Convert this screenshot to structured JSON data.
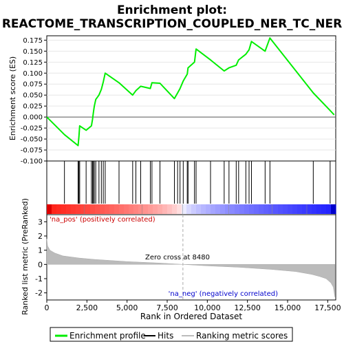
{
  "chart_data": {
    "type": "line",
    "title": "Enrichment plot:",
    "subtitle": "REACTOME_TRANSCRIPTION_COUPLED_NER_TC_NER",
    "top_panel": {
      "ylabel": "Enrichment score (ES)",
      "ylim": [
        -0.1,
        0.185
      ],
      "yticks": [
        "-0.100",
        "-0.075",
        "-0.050",
        "-0.025",
        "0.000",
        "0.025",
        "0.050",
        "0.075",
        "0.100",
        "0.125",
        "0.150",
        "0.175"
      ],
      "series": [
        {
          "name": "Enrichment profile",
          "color": "#00ee00",
          "x": [
            0,
            1100,
            1950,
            2000,
            2050,
            2450,
            2780,
            2850,
            2900,
            2960,
            3050,
            3250,
            3400,
            3520,
            3640,
            4500,
            5350,
            5550,
            5850,
            6450,
            6550,
            7050,
            7950,
            8150,
            8300,
            8500,
            8750,
            8800,
            9200,
            9300,
            10200,
            11050,
            11350,
            11800,
            11950,
            12400,
            12600,
            12750,
            13600,
            13900,
            16600,
            17650,
            17900
          ],
          "y": [
            0.0,
            -0.04,
            -0.065,
            -0.045,
            -0.02,
            -0.03,
            -0.02,
            -0.005,
            0.01,
            0.025,
            0.04,
            0.05,
            0.063,
            0.08,
            0.1,
            0.078,
            0.05,
            0.06,
            0.07,
            0.065,
            0.078,
            0.077,
            0.042,
            0.055,
            0.065,
            0.082,
            0.098,
            0.112,
            0.125,
            0.155,
            0.13,
            0.105,
            0.112,
            0.118,
            0.13,
            0.143,
            0.153,
            0.172,
            0.15,
            0.18,
            0.055,
            0.015,
            0.005
          ]
        }
      ]
    },
    "hits_panel": {
      "legend_label": "Hits",
      "hit_positions": [
        1100,
        1950,
        2000,
        2050,
        2450,
        2780,
        2850,
        2900,
        2960,
        3050,
        3250,
        3400,
        3520,
        3640,
        4500,
        5350,
        5550,
        5850,
        6450,
        6550,
        7050,
        7950,
        8150,
        8300,
        8500,
        8750,
        8800,
        9200,
        9300,
        10200,
        11050,
        11350,
        11800,
        11950,
        12400,
        12600,
        12750,
        13600,
        13900,
        16600,
        17650
      ]
    },
    "bottom_panel": {
      "ylabel": "Ranked list metric (PreRanked)",
      "xlabel": "Rank in Ordered Dataset",
      "ylim": [
        -2.5,
        3.5
      ],
      "yticks": [
        "-2",
        "-1",
        "0",
        "1",
        "2",
        "3"
      ],
      "x_range": [
        0,
        18000
      ],
      "xticks": [
        "0",
        "2,500",
        "5,000",
        "7,500",
        "10,000",
        "12,500",
        "15,000",
        "17,500"
      ],
      "metric_profile": {
        "name": "Ranking metric scores",
        "x": [
          0,
          50,
          200,
          500,
          1000,
          2000,
          3000,
          5000,
          7000,
          8480,
          10000,
          12000,
          14000,
          15500,
          16500,
          17000,
          17400,
          17700,
          17850,
          17950
        ],
        "y": [
          1.8,
          1.3,
          1.0,
          0.8,
          0.6,
          0.45,
          0.35,
          0.2,
          0.1,
          0.0,
          -0.1,
          -0.2,
          -0.35,
          -0.5,
          -0.7,
          -0.85,
          -1.0,
          -1.3,
          -1.6,
          -2.3
        ]
      },
      "zero_cross_label": "Zero cross at 8480",
      "zero_cross": 8480,
      "pos_label": "'na_pos' (positively correlated)",
      "neg_label": "'na_neg' (negatively correlated)"
    },
    "legend": {
      "items": [
        "Enrichment profile",
        "Hits",
        "Ranking metric scores"
      ],
      "placement": "bottom"
    },
    "colors": {
      "profile": "#00ee00",
      "pos": "#cc0000",
      "neg": "#0000cc",
      "zero_line": "#aaaaaa",
      "pos_label_color": "#cc0000",
      "neg_label_color": "#0000cc"
    }
  }
}
